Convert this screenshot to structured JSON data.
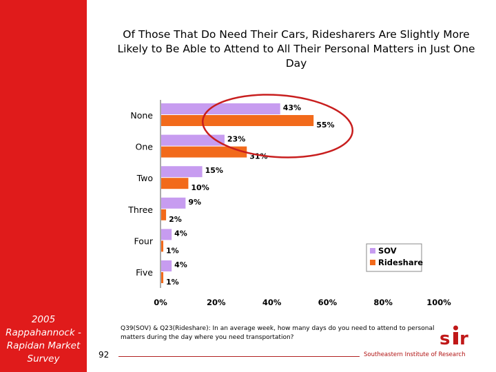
{
  "sidebar": {
    "survey_label": "2005 Rappahannock - Rapidan Market Survey"
  },
  "title": "Of Those That Do Need Their Cars, Ridesharers Are Slightly More Likely to Be Able to Attend to All Their Personal Matters in Just One Day",
  "footnote": "Q39(SOV) & Q23(Rideshare): In an average week, how many days do you need to attend to personal matters during the day where you need transportation?",
  "page_number": "92",
  "organization": "Southeastern Institute of Research",
  "colors": {
    "sidebar": "#e01b1b",
    "sov": "#c79cf0",
    "rideshare": "#f26a1b",
    "highlight_circle": "#c81e1e"
  },
  "chart_data": {
    "type": "bar",
    "orientation": "horizontal",
    "categories": [
      "None",
      "One",
      "Two",
      "Three",
      "Four",
      "Five"
    ],
    "series": [
      {
        "name": "SOV",
        "values": [
          43,
          23,
          15,
          9,
          4,
          4
        ],
        "labels": [
          "43%",
          "23%",
          "15%",
          "9%",
          "4%",
          "4%"
        ]
      },
      {
        "name": "Rideshare",
        "values": [
          55,
          31,
          10,
          2,
          1,
          1
        ],
        "labels": [
          "55%",
          "31%",
          "10%",
          "2%",
          "1%",
          "1%"
        ]
      }
    ],
    "x_ticks": [
      "0%",
      "20%",
      "40%",
      "60%",
      "80%",
      "100%"
    ],
    "xlim": [
      0,
      100
    ],
    "legend_position": "right",
    "annotation": "ellipse highlighting None and One bars"
  }
}
